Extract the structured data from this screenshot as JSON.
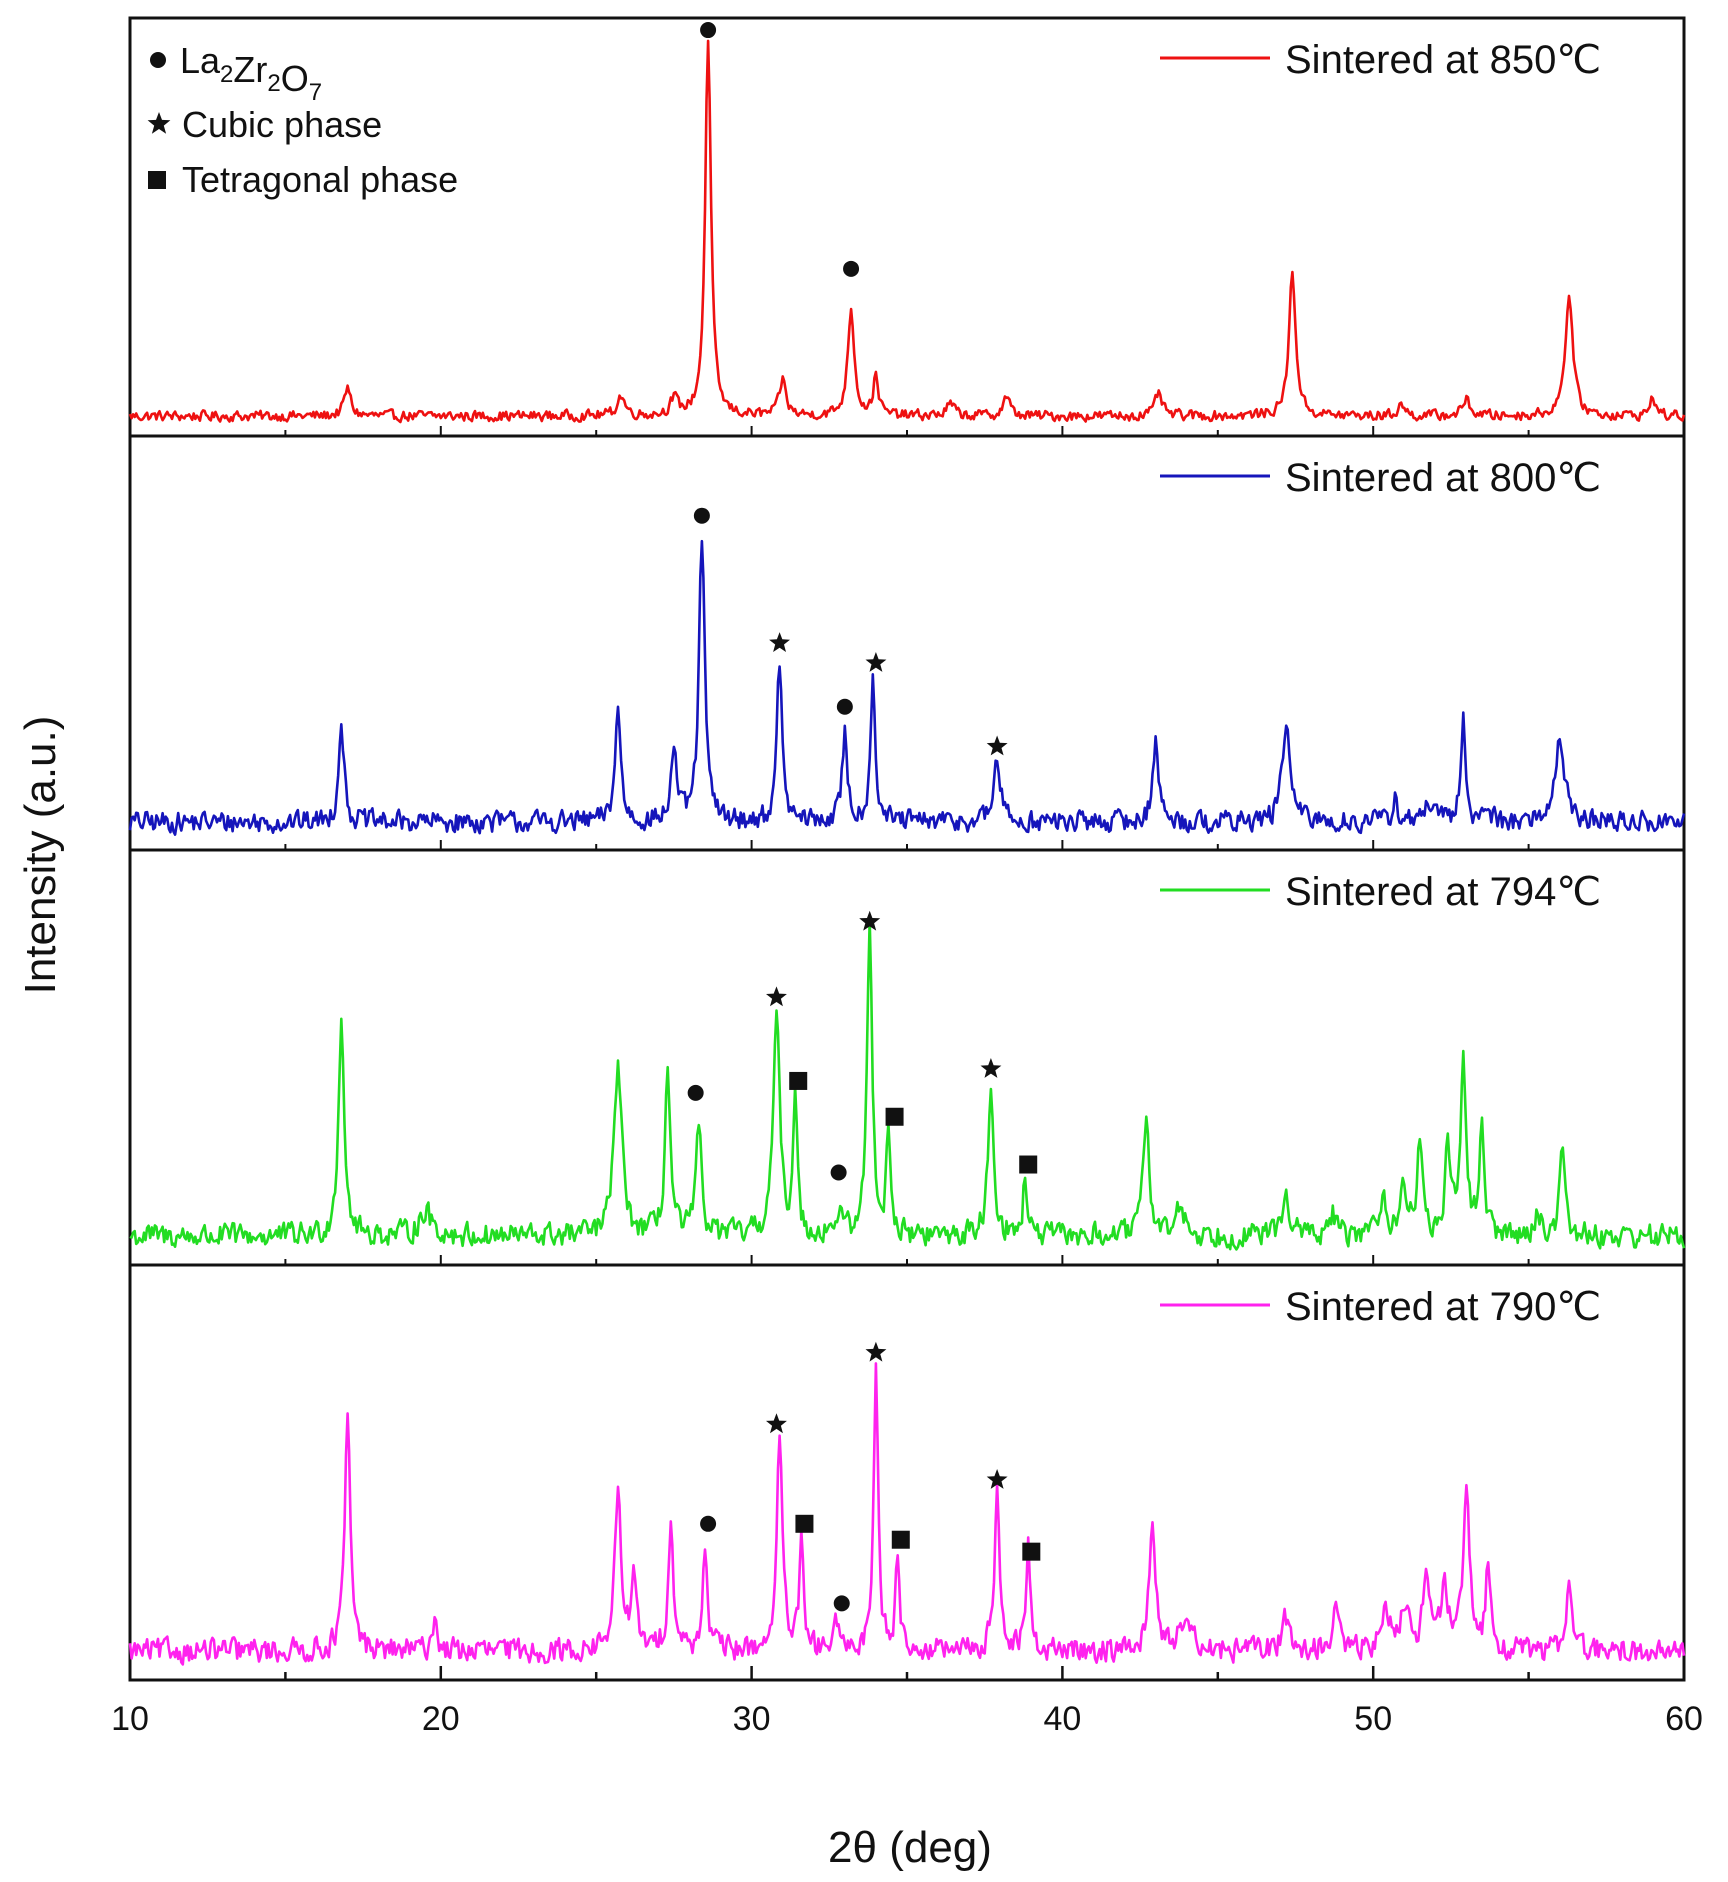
{
  "chart_data": {
    "type": "line",
    "xlabel": "2θ (deg)",
    "ylabel": "Intensity (a.u.)",
    "xlim": [
      10,
      60
    ],
    "x_ticks": [
      "10",
      "20",
      "30",
      "40",
      "50",
      "60"
    ],
    "grid": false,
    "marker_legend": {
      "formula": {
        "base": [
          "La",
          "Zr",
          "O"
        ],
        "subs": [
          "2",
          "2",
          "7"
        ]
      },
      "items": [
        {
          "symbol": "circle",
          "label": "La₂Zr₂O₇"
        },
        {
          "symbol": "star",
          "label": "Cubic phase"
        },
        {
          "symbol": "square",
          "label": "Tetragonal phase"
        }
      ],
      "cubic_label": "Cubic phase",
      "tetragonal_label": "Tetragonal phase"
    },
    "series": [
      {
        "name": "Sintered at 850℃",
        "color": "#ee1111",
        "baseline": 0.05,
        "noise": 0.012,
        "peaks": [
          [
            17.0,
            0.07,
            0.25
          ],
          [
            25.8,
            0.05,
            0.3
          ],
          [
            27.5,
            0.04,
            0.3
          ],
          [
            28.6,
            0.95,
            0.22
          ],
          [
            31.0,
            0.09,
            0.25
          ],
          [
            33.2,
            0.27,
            0.25
          ],
          [
            34.0,
            0.1,
            0.2
          ],
          [
            36.4,
            0.03,
            0.3
          ],
          [
            38.2,
            0.05,
            0.25
          ],
          [
            43.1,
            0.06,
            0.25
          ],
          [
            47.4,
            0.36,
            0.26
          ],
          [
            50.9,
            0.03,
            0.25
          ],
          [
            53.0,
            0.04,
            0.3
          ],
          [
            56.3,
            0.3,
            0.3
          ],
          [
            59.0,
            0.05,
            0.2
          ]
        ],
        "markers": [
          {
            "symbol": "circle",
            "x": 28.6,
            "y": 1.02
          },
          {
            "symbol": "circle",
            "x": 33.2,
            "y": 0.42
          }
        ]
      },
      {
        "name": "Sintered at 800℃",
        "color": "#1515bb",
        "baseline": 0.08,
        "noise": 0.025,
        "peaks": [
          [
            16.8,
            0.26,
            0.2
          ],
          [
            25.7,
            0.28,
            0.22
          ],
          [
            27.5,
            0.19,
            0.2
          ],
          [
            28.4,
            0.72,
            0.22
          ],
          [
            30.9,
            0.4,
            0.2
          ],
          [
            33.0,
            0.22,
            0.2
          ],
          [
            33.9,
            0.37,
            0.18
          ],
          [
            37.9,
            0.16,
            0.25
          ],
          [
            43.0,
            0.21,
            0.22
          ],
          [
            47.2,
            0.25,
            0.3
          ],
          [
            50.7,
            0.06,
            0.2
          ],
          [
            51.8,
            0.05,
            0.3
          ],
          [
            52.9,
            0.26,
            0.18
          ],
          [
            53.7,
            0.04,
            0.2
          ],
          [
            56.0,
            0.22,
            0.35
          ]
        ],
        "markers": [
          {
            "symbol": "circle",
            "x": 28.4,
            "y": 0.85
          },
          {
            "symbol": "star",
            "x": 30.9,
            "y": 0.53
          },
          {
            "symbol": "circle",
            "x": 33.0,
            "y": 0.37
          },
          {
            "symbol": "star",
            "x": 34.0,
            "y": 0.48
          },
          {
            "symbol": "star",
            "x": 37.9,
            "y": 0.27
          }
        ]
      },
      {
        "name": "Sintered at 794℃",
        "color": "#22dd22",
        "baseline": 0.08,
        "noise": 0.028,
        "peaks": [
          [
            16.8,
            0.55,
            0.22
          ],
          [
            19.5,
            0.06,
            0.5
          ],
          [
            25.7,
            0.43,
            0.3
          ],
          [
            27.3,
            0.42,
            0.2
          ],
          [
            28.3,
            0.26,
            0.22
          ],
          [
            30.8,
            0.55,
            0.25
          ],
          [
            31.4,
            0.37,
            0.15
          ],
          [
            32.8,
            0.05,
            0.3
          ],
          [
            33.8,
            0.77,
            0.2
          ],
          [
            34.4,
            0.27,
            0.15
          ],
          [
            37.7,
            0.37,
            0.22
          ],
          [
            38.8,
            0.15,
            0.15
          ],
          [
            42.7,
            0.32,
            0.22
          ],
          [
            43.8,
            0.08,
            0.3
          ],
          [
            47.2,
            0.1,
            0.3
          ],
          [
            48.7,
            0.06,
            0.2
          ],
          [
            50.3,
            0.1,
            0.3
          ],
          [
            51.0,
            0.12,
            0.25
          ],
          [
            51.5,
            0.24,
            0.2
          ],
          [
            52.4,
            0.21,
            0.2
          ],
          [
            52.9,
            0.47,
            0.2
          ],
          [
            53.5,
            0.28,
            0.18
          ],
          [
            55.3,
            0.06,
            0.2
          ],
          [
            56.1,
            0.22,
            0.22
          ]
        ],
        "markers": [
          {
            "symbol": "circle",
            "x": 28.2,
            "y": 0.44
          },
          {
            "symbol": "star",
            "x": 30.8,
            "y": 0.68
          },
          {
            "symbol": "square",
            "x": 31.5,
            "y": 0.47
          },
          {
            "symbol": "circle",
            "x": 32.8,
            "y": 0.24
          },
          {
            "symbol": "star",
            "x": 33.8,
            "y": 0.87
          },
          {
            "symbol": "square",
            "x": 34.6,
            "y": 0.38
          },
          {
            "symbol": "star",
            "x": 37.7,
            "y": 0.5
          },
          {
            "symbol": "square",
            "x": 38.9,
            "y": 0.26
          }
        ]
      },
      {
        "name": "Sintered at 790℃",
        "color": "#ff22ee",
        "baseline": 0.08,
        "noise": 0.028,
        "peaks": [
          [
            17.0,
            0.57,
            0.22
          ],
          [
            19.8,
            0.08,
            0.2
          ],
          [
            25.7,
            0.38,
            0.25
          ],
          [
            26.2,
            0.18,
            0.2
          ],
          [
            27.4,
            0.32,
            0.2
          ],
          [
            28.5,
            0.24,
            0.2
          ],
          [
            30.9,
            0.52,
            0.22
          ],
          [
            31.6,
            0.27,
            0.15
          ],
          [
            32.7,
            0.06,
            0.2
          ],
          [
            34.0,
            0.7,
            0.18
          ],
          [
            34.7,
            0.25,
            0.15
          ],
          [
            37.9,
            0.4,
            0.2
          ],
          [
            38.9,
            0.27,
            0.15
          ],
          [
            42.9,
            0.31,
            0.25
          ],
          [
            44.0,
            0.11,
            0.35
          ],
          [
            47.2,
            0.08,
            0.3
          ],
          [
            48.8,
            0.1,
            0.25
          ],
          [
            50.4,
            0.1,
            0.3
          ],
          [
            51.0,
            0.12,
            0.3
          ],
          [
            51.7,
            0.22,
            0.22
          ],
          [
            52.3,
            0.15,
            0.3
          ],
          [
            53.0,
            0.37,
            0.25
          ],
          [
            53.7,
            0.22,
            0.18
          ],
          [
            56.3,
            0.2,
            0.2
          ]
        ],
        "markers": [
          {
            "symbol": "circle",
            "x": 28.6,
            "y": 0.4
          },
          {
            "symbol": "star",
            "x": 30.8,
            "y": 0.65
          },
          {
            "symbol": "square",
            "x": 31.7,
            "y": 0.4
          },
          {
            "symbol": "circle",
            "x": 32.9,
            "y": 0.2
          },
          {
            "symbol": "star",
            "x": 34.0,
            "y": 0.83
          },
          {
            "symbol": "square",
            "x": 34.8,
            "y": 0.36
          },
          {
            "symbol": "star",
            "x": 37.9,
            "y": 0.51
          },
          {
            "symbol": "square",
            "x": 39.0,
            "y": 0.33
          }
        ]
      }
    ]
  }
}
